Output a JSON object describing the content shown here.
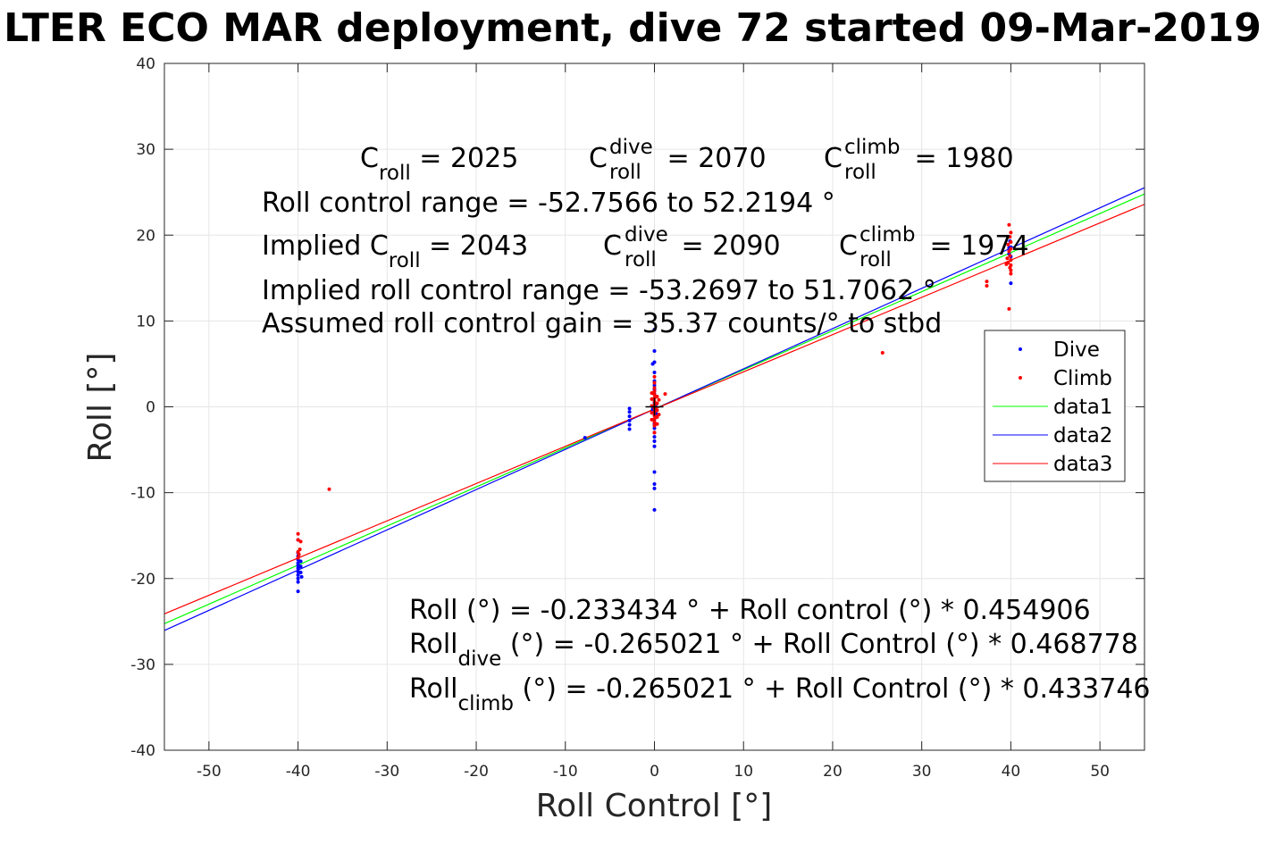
{
  "chart_data": {
    "type": "scatter",
    "title": "LTER ECO MAR deployment, dive 72 started 09-Mar-2019",
    "xlabel": "Roll Control [°]",
    "ylabel": "Roll [°]",
    "xlim": [
      -55,
      55
    ],
    "ylim": [
      -40,
      40
    ],
    "xticks": [
      -50,
      -40,
      -30,
      -20,
      -10,
      0,
      10,
      20,
      30,
      40,
      50
    ],
    "yticks": [
      -40,
      -30,
      -20,
      -10,
      0,
      10,
      20,
      30,
      40
    ],
    "grid": true,
    "legend_position": "right",
    "series": [
      {
        "name": "Dive",
        "kind": "points",
        "color": "#0000ff",
        "points": [
          [
            -40,
            -21.5
          ],
          [
            -40,
            -20.4
          ],
          [
            -40,
            -20
          ],
          [
            -40,
            -19.6
          ],
          [
            -40,
            -19.2
          ],
          [
            -40,
            -18.8
          ],
          [
            -40,
            -18.5
          ],
          [
            -40,
            -18.2
          ],
          [
            -40,
            -17.8
          ],
          [
            -40,
            -17.4
          ],
          [
            -40,
            -17
          ],
          [
            -40,
            -15.5
          ],
          [
            -39.6,
            -19.8
          ],
          [
            -39.7,
            -19.3
          ],
          [
            -39.7,
            -18.6
          ],
          [
            -39.7,
            -18
          ],
          [
            -7.8,
            -3.6
          ],
          [
            -2.8,
            -2.6
          ],
          [
            -2.8,
            -2.1
          ],
          [
            -2.8,
            -1.6
          ],
          [
            -2.8,
            -1.1
          ],
          [
            -2.8,
            -0.6
          ],
          [
            -2.8,
            -0.2
          ],
          [
            0,
            9
          ],
          [
            0,
            6.5
          ],
          [
            0,
            5.2
          ],
          [
            0,
            4
          ],
          [
            0,
            3
          ],
          [
            0,
            2.5
          ],
          [
            0,
            2
          ],
          [
            0,
            1.5
          ],
          [
            0,
            1
          ],
          [
            0,
            0.5
          ],
          [
            0,
            0
          ],
          [
            0,
            -0.5
          ],
          [
            0,
            -1
          ],
          [
            0,
            -1.5
          ],
          [
            0,
            -2
          ],
          [
            0,
            -2.5
          ],
          [
            0,
            -3
          ],
          [
            0,
            -3.5
          ],
          [
            0,
            -4
          ],
          [
            0,
            -4.6
          ],
          [
            0,
            -7.6
          ],
          [
            0,
            -9
          ],
          [
            0,
            -9.5
          ],
          [
            0,
            -12
          ],
          [
            -0.2,
            5
          ],
          [
            -0.2,
            -0.3
          ],
          [
            0.2,
            0.3
          ],
          [
            0.2,
            -0.8
          ],
          [
            39.8,
            17.8
          ],
          [
            39.8,
            18.5
          ],
          [
            40,
            14.4
          ],
          [
            40,
            17.5
          ],
          [
            39.9,
            19.3
          ],
          [
            40,
            18.6
          ]
        ]
      },
      {
        "name": "Climb",
        "kind": "points",
        "color": "#ff0000",
        "points": [
          [
            -36.5,
            -9.6
          ],
          [
            -40,
            -14.8
          ],
          [
            -40,
            -15.5
          ],
          [
            -39.8,
            -16.6
          ],
          [
            -40,
            -16.9
          ],
          [
            -39.9,
            -17.2
          ],
          [
            -40,
            -17.6
          ],
          [
            -39.7,
            -15.7
          ],
          [
            1.2,
            1.5
          ],
          [
            0,
            3.5
          ],
          [
            0,
            2.8
          ],
          [
            0,
            2.2
          ],
          [
            0,
            1.8
          ],
          [
            0,
            1.4
          ],
          [
            0,
            1
          ],
          [
            0,
            0.6
          ],
          [
            0,
            0.2
          ],
          [
            0,
            -0.2
          ],
          [
            0,
            -0.6
          ],
          [
            0,
            -1
          ],
          [
            0,
            -1.4
          ],
          [
            0,
            -1.8
          ],
          [
            0,
            -2.2
          ],
          [
            0,
            -3
          ],
          [
            -0.3,
            1.6
          ],
          [
            -0.3,
            0.9
          ],
          [
            -0.3,
            0.1
          ],
          [
            -0.3,
            -0.7
          ],
          [
            -0.3,
            -1.5
          ],
          [
            0.3,
            1.2
          ],
          [
            0.3,
            0.4
          ],
          [
            0.3,
            -0.4
          ],
          [
            0.3,
            -1.2
          ],
          [
            0.3,
            -2
          ],
          [
            0.5,
            0.8
          ],
          [
            0.5,
            -0.9
          ],
          [
            25.6,
            6.3
          ],
          [
            37.3,
            14.1
          ],
          [
            37.3,
            14.6
          ],
          [
            39.8,
            11.4
          ],
          [
            39.8,
            21.2
          ],
          [
            40,
            20.3
          ],
          [
            39.9,
            19.8
          ],
          [
            40,
            19.2
          ],
          [
            39.7,
            18.9
          ],
          [
            40,
            18.4
          ],
          [
            39.8,
            18.1
          ],
          [
            39.9,
            17.6
          ],
          [
            40,
            17.1
          ],
          [
            39.7,
            16.8
          ],
          [
            40,
            16.5
          ],
          [
            39.9,
            16.2
          ],
          [
            40,
            15.9
          ],
          [
            39.6,
            17.3
          ],
          [
            39.5,
            16.6
          ],
          [
            40,
            15.5
          ]
        ]
      },
      {
        "name": "data1",
        "kind": "line",
        "color": "#00ff00",
        "x": [
          -55,
          55
        ],
        "y": [
          -25.26,
          24.79
        ]
      },
      {
        "name": "data2",
        "kind": "line",
        "color": "#0000ff",
        "x": [
          -55,
          55
        ],
        "y": [
          -26.05,
          25.52
        ]
      },
      {
        "name": "data3",
        "kind": "line",
        "color": "#ff0000",
        "x": [
          -55,
          55
        ],
        "y": [
          -24.12,
          23.59
        ]
      }
    ],
    "center_marker": {
      "x": 0,
      "y": 0,
      "color": "#000000"
    },
    "annotations": {
      "croll": "C",
      "croll_sub": "roll",
      "croll_val": " = 2025",
      "cdive": "C",
      "cdive_sup": "dive",
      "cdive_sub": "roll",
      "cdive_val": " = 2070",
      "cclimb": "C",
      "cclimb_sup": "climb",
      "cclimb_sub": "roll",
      "cclimb_val": " = 1980",
      "range": "Roll control range = -52.7566 to 52.2194 °",
      "implied_prefix": "Implied C",
      "implied_sub": "roll",
      "implied_val": " = 2043",
      "implied_dive": "C",
      "implied_dive_sup": "dive",
      "implied_dive_sub": "roll",
      "implied_dive_val": " = 2090",
      "implied_climb": "C",
      "implied_climb_sup": "climb",
      "implied_climb_sub": "roll",
      "implied_climb_val": " = 1974",
      "implied_range": "Implied roll control range = -53.2697 to 51.7062 °",
      "gain": "Assumed roll control gain = 35.37 counts/° to stbd",
      "fit_all": "Roll (°) = -0.233434 ° + Roll control (°) * 0.454906",
      "fit_dive_a": "Roll",
      "fit_dive_sub": "dive",
      "fit_dive_b": " (°) = -0.265021 ° + Roll Control (°) * 0.468778",
      "fit_climb_a": "Roll",
      "fit_climb_sub": "climb",
      "fit_climb_b": " (°) = -0.265021 ° + Roll Control (°) * 0.433746"
    }
  }
}
